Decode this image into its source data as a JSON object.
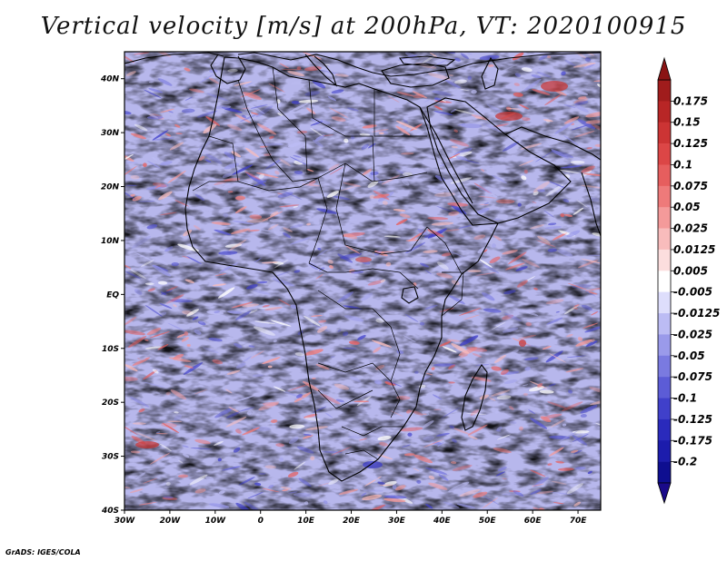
{
  "title": "Vertical velocity [m/s] at 200hPa, VT: 2020100915",
  "credit": "GrADS: IGES/COLA",
  "map": {
    "lon_range": [
      -30,
      75
    ],
    "lat_range": [
      -40,
      45
    ],
    "lat_ticks": [
      "40N",
      "30N",
      "20N",
      "10N",
      "EQ",
      "10S",
      "20S",
      "30S",
      "40S"
    ],
    "lon_ticks": [
      "30W",
      "20W",
      "10W",
      "0",
      "10E",
      "20E",
      "30E",
      "40E",
      "50E",
      "60E",
      "70E"
    ],
    "colors": {
      "background_pink": "#f2b5b3",
      "background_blue": "#b7b7ec",
      "strong_red": "#c83a3a",
      "strong_blue": "#3b3bc4",
      "coastline": "#000000"
    }
  },
  "colorbar": {
    "levels": [
      "0.175",
      "0.15",
      "0.125",
      "0.1",
      "0.075",
      "0.05",
      "0.025",
      "0.0125",
      "0.005",
      "-0.005",
      "-0.0125",
      "-0.025",
      "-0.05",
      "-0.075",
      "-0.1",
      "-0.125",
      "-0.175",
      "-0.2"
    ],
    "colors": [
      "#a01c1c",
      "#b82626",
      "#cc3434",
      "#dc4646",
      "#e65e5e",
      "#ee7a7a",
      "#f49a9a",
      "#f8bcbc",
      "#fcdede",
      "#ffffff",
      "#dedefc",
      "#bcbcf4",
      "#9a9aea",
      "#7a7ae0",
      "#5c5cd6",
      "#4040ca",
      "#2a2abc",
      "#1c1cac",
      "#0e0e90"
    ],
    "top_arrow_color": "#8a1414",
    "bottom_arrow_color": "#1a0a8a"
  }
}
